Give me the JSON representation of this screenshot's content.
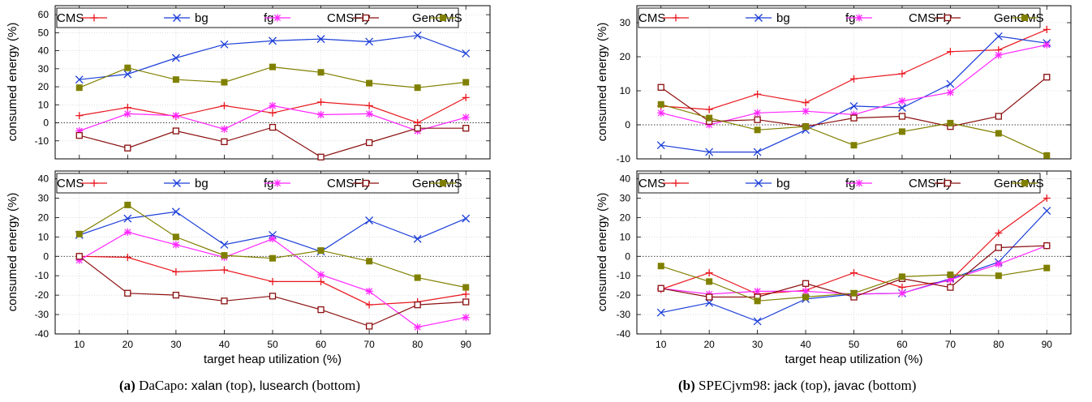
{
  "colors": {
    "CMS": "#e8171e",
    "bg": "#1c3fd8",
    "fg": "#ff26ff",
    "CMSFly": "#8b0f0f",
    "GenCMS": "#808000"
  },
  "legend_labels": [
    "CMS",
    "bg",
    "fg",
    "CMSFly",
    "GenCMS"
  ],
  "captions": {
    "a": {
      "tag": "(a)",
      "suite": " DaCapo: ",
      "b1": "xalan",
      "t1": " (top), ",
      "b2": "lusearch",
      "t2": " (bottom)"
    },
    "b": {
      "tag": "(b)",
      "suite": " SPECjvm98: ",
      "b1": "jack",
      "t1": " (top), ",
      "b2": "javac",
      "t2": " (bottom)"
    }
  },
  "chart_data": [
    {
      "type": "line",
      "benchmark": "xalan",
      "ylabel": "consumed energy (%)",
      "xlabel": "",
      "ylim": [
        -20,
        65
      ],
      "yticks": [
        -10,
        0,
        10,
        20,
        30,
        40,
        50,
        60
      ],
      "x": [
        10,
        20,
        30,
        40,
        50,
        60,
        70,
        80,
        90
      ],
      "grid": true,
      "legend_position": "top",
      "series": [
        {
          "name": "CMS",
          "marker": "+",
          "values": [
            4,
            8.5,
            3.5,
            9.5,
            5.5,
            11.5,
            9.5,
            0,
            14
          ]
        },
        {
          "name": "bg",
          "marker": "x",
          "values": [
            24,
            27,
            36,
            43.5,
            45.5,
            46.5,
            45,
            48.5,
            38.5
          ]
        },
        {
          "name": "fg",
          "marker": "*",
          "values": [
            -4.5,
            5,
            4,
            -3.5,
            9.5,
            4.5,
            5,
            -4.5,
            3
          ]
        },
        {
          "name": "CMSFly",
          "marker": "square-open",
          "values": [
            -7,
            -14,
            -4.5,
            -10.5,
            -2.5,
            -19,
            -11,
            -3,
            -3
          ]
        },
        {
          "name": "GenCMS",
          "marker": "square-filled",
          "values": [
            19.5,
            30.5,
            24,
            22.5,
            31,
            28,
            22,
            19.5,
            22.5
          ]
        }
      ]
    },
    {
      "type": "line",
      "benchmark": "lusearch",
      "ylabel": "consumed energy (%)",
      "xlabel": "target heap utilization (%)",
      "ylim": [
        -40,
        44
      ],
      "yticks": [
        -40,
        -30,
        -20,
        -10,
        0,
        10,
        20,
        30,
        40
      ],
      "x": [
        10,
        20,
        30,
        40,
        50,
        60,
        70,
        80,
        90
      ],
      "xticks": [
        "10",
        "20",
        "30",
        "40",
        "50",
        "60",
        "70",
        "80",
        "90"
      ],
      "grid": true,
      "legend_position": "top",
      "series": [
        {
          "name": "CMS",
          "marker": "+",
          "values": [
            0,
            -0.5,
            -8,
            -7,
            -13,
            -13,
            -25,
            -23.5,
            -19.5
          ]
        },
        {
          "name": "bg",
          "marker": "x",
          "values": [
            11,
            19.5,
            23,
            6,
            11,
            2.5,
            18.5,
            9,
            19.5
          ]
        },
        {
          "name": "fg",
          "marker": "*",
          "values": [
            -2,
            12.5,
            6,
            -0.5,
            9,
            -9.5,
            -18,
            -36.5,
            -31.5
          ]
        },
        {
          "name": "CMSFly",
          "marker": "square-open",
          "values": [
            0,
            -19,
            -20,
            -23,
            -20.5,
            -27.5,
            -36,
            -25,
            -23.5
          ]
        },
        {
          "name": "GenCMS",
          "marker": "square-filled",
          "values": [
            11.5,
            26.5,
            10,
            0.5,
            -1,
            3,
            -2.5,
            -11,
            -16
          ]
        }
      ]
    },
    {
      "type": "line",
      "benchmark": "jack",
      "ylabel": "consumed energy (%)",
      "xlabel": "",
      "ylim": [
        -10,
        35
      ],
      "yticks": [
        -10,
        0,
        10,
        20,
        30
      ],
      "x": [
        10,
        20,
        30,
        40,
        50,
        60,
        70,
        80,
        90
      ],
      "grid": true,
      "legend_position": "top",
      "series": [
        {
          "name": "CMS",
          "marker": "+",
          "values": [
            5.5,
            4.5,
            9,
            6.5,
            13.5,
            15,
            21.5,
            22,
            28
          ]
        },
        {
          "name": "bg",
          "marker": "x",
          "values": [
            -6,
            -8,
            -8,
            -1.5,
            5.5,
            5,
            12,
            26,
            24
          ]
        },
        {
          "name": "fg",
          "marker": "*",
          "values": [
            3.5,
            0,
            3.5,
            4,
            3,
            7,
            9.5,
            20.5,
            23.5
          ]
        },
        {
          "name": "CMSFly",
          "marker": "square-open",
          "values": [
            11,
            1,
            1.5,
            -0.5,
            2,
            2.5,
            -0.5,
            2.5,
            14
          ]
        },
        {
          "name": "GenCMS",
          "marker": "square-filled",
          "values": [
            6,
            2,
            -1.5,
            -0.5,
            -6,
            -2,
            0.5,
            -2.5,
            -9
          ]
        }
      ]
    },
    {
      "type": "line",
      "benchmark": "javac",
      "ylabel": "consumed energy (%)",
      "xlabel": "target heap utilization (%)",
      "ylim": [
        -40,
        44
      ],
      "yticks": [
        -40,
        -30,
        -20,
        -10,
        0,
        10,
        20,
        30,
        40
      ],
      "x": [
        10,
        20,
        30,
        40,
        50,
        60,
        70,
        80,
        90
      ],
      "xticks": [
        "10",
        "20",
        "30",
        "40",
        "50",
        "60",
        "70",
        "80",
        "90"
      ],
      "grid": true,
      "legend_position": "top",
      "series": [
        {
          "name": "CMS",
          "marker": "+",
          "values": [
            -17,
            -8.5,
            -19.5,
            -17.5,
            -8.5,
            -16,
            -12.5,
            12,
            30
          ]
        },
        {
          "name": "bg",
          "marker": "x",
          "values": [
            -29,
            -24,
            -33.5,
            -22,
            -19.5,
            -19,
            -11.5,
            -3,
            23.5
          ]
        },
        {
          "name": "fg",
          "marker": "*",
          "values": [
            -16.5,
            -19.5,
            -18,
            -18,
            -19.5,
            -19,
            -12,
            -4,
            5.5
          ]
        },
        {
          "name": "CMSFly",
          "marker": "square-open",
          "values": [
            -16.5,
            -21,
            -21,
            -14,
            -21,
            -11.5,
            -16,
            4.5,
            5.5
          ]
        },
        {
          "name": "GenCMS",
          "marker": "square-filled",
          "values": [
            -5,
            -13,
            -23,
            -21,
            -19,
            -10.5,
            -9.5,
            -10,
            -6
          ]
        }
      ]
    }
  ]
}
